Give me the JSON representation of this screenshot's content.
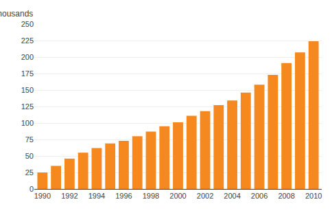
{
  "chart_data": {
    "type": "bar",
    "x": [
      1990,
      1991,
      1992,
      1993,
      1994,
      1995,
      1996,
      1997,
      1998,
      1999,
      2000,
      2001,
      2002,
      2003,
      2004,
      2005,
      2006,
      2007,
      2008,
      2009,
      2010
    ],
    "values": [
      25,
      35,
      46,
      55,
      62,
      69,
      73,
      80,
      87,
      95,
      101,
      111,
      118,
      127,
      134,
      146,
      158,
      173,
      191,
      207,
      224
    ],
    "color": "#F5891F",
    "xlim": [
      1989.4,
      2010.6
    ],
    "xticks": [
      1990,
      1992,
      1994,
      1996,
      1998,
      2000,
      2002,
      2004,
      2006,
      2008,
      2010
    ],
    "ylim": [
      0,
      250
    ],
    "yticks": [
      0,
      25,
      50,
      75,
      100,
      125,
      150,
      175,
      200,
      225,
      250
    ],
    "grid": true,
    "annotations": [
      "Thousands"
    ]
  }
}
